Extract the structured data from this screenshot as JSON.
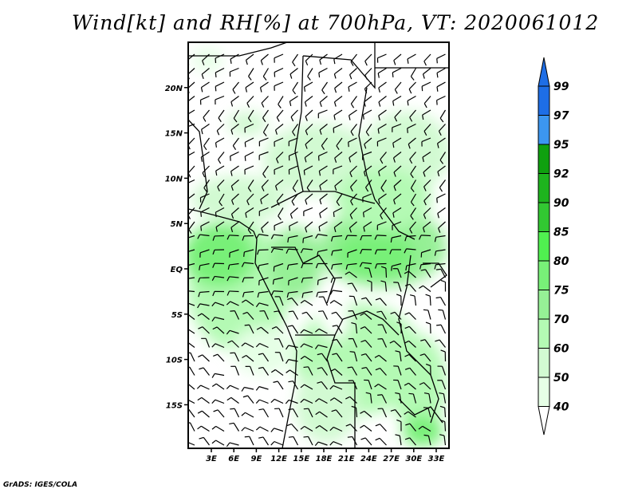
{
  "title": "Wind[kt] and RH[%] at 700hPa, VT: 2020061012",
  "credit": "GrADS: IGES/COLA",
  "lat_labels": [
    "20N",
    "15N",
    "10N",
    "5N",
    "EQ",
    "5S",
    "10S",
    "15S"
  ],
  "lat_values": [
    20,
    15,
    10,
    5,
    0,
    -5,
    -10,
    -15
  ],
  "lon_labels": [
    "3E",
    "6E",
    "9E",
    "12E",
    "15E",
    "18E",
    "21E",
    "24E",
    "27E",
    "30E",
    "33E"
  ],
  "lon_values": [
    3,
    6,
    9,
    12,
    15,
    18,
    21,
    24,
    27,
    30,
    33
  ],
  "colorbar": {
    "labels": [
      "99",
      "97",
      "95",
      "92",
      "90",
      "85",
      "80",
      "75",
      "70",
      "60",
      "50",
      "40"
    ],
    "colors_top_to_bottom": [
      "#1e6ee6",
      "#3c96f0",
      "#0fa00f",
      "#1eb41e",
      "#32c832",
      "#50f050",
      "#78f078",
      "#96f096",
      "#b4fab4",
      "#d2fad2",
      "#e6ffe6"
    ],
    "over_color": "#1e6ee6",
    "under_color": "#ffffff"
  }
}
